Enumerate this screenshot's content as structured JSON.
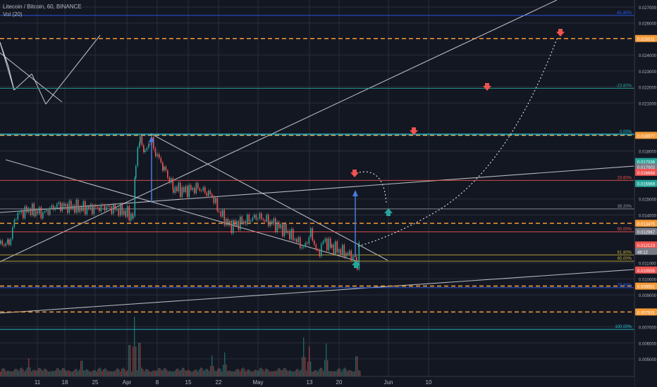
{
  "header": {
    "symbol": "Litecoin / Bitcoin, 60, BINANCE",
    "volume_indicator": "Vol (20)"
  },
  "colors": {
    "background": "#131722",
    "grid": "#2a2e39",
    "orange_level": "#f59a37",
    "fib_blue": "#2962ff",
    "fib_green": "#26a69a",
    "fib_red": "#ef5350",
    "trendline": "#d1d4dc",
    "candle_up": "#26a69a",
    "candle_down": "#ef5350",
    "arrow_blue": "#4a7bd8"
  },
  "chart_data": {
    "type": "candlestick",
    "y_axis": {
      "min": 0.0045,
      "max": 0.0272,
      "ticks": [
        "0.027000",
        "0.026000",
        "0.024000",
        "0.023000",
        "0.022000",
        "0.021000",
        "0.018000",
        "0.015000",
        "0.014000",
        "0.011000",
        "0.010000",
        "0.009000",
        "0.007000",
        "0.006000",
        "0.005000"
      ]
    },
    "x_axis": {
      "ticks": [
        "11",
        "18",
        "25",
        "Apr",
        "8",
        "15",
        "22",
        "May",
        "13",
        "20",
        "Jun",
        "10"
      ]
    },
    "fib_levels": [
      {
        "label": "-61.80%",
        "price": 0.02648,
        "color": "#2962ff"
      },
      {
        "label": "-23.60%",
        "price": 0.02192,
        "color": "#26a69a"
      },
      {
        "label": "0.00%",
        "price": 0.01904,
        "color": "#26c6da"
      },
      {
        "label": "23.60%",
        "price": 0.01616,
        "color": "#ef5350"
      },
      {
        "label": "38.20%",
        "price": 0.01438,
        "color": "#9598a1"
      },
      {
        "label": "50.00%",
        "price": 0.01294,
        "color": "#ef5350"
      },
      {
        "label": "61.80%",
        "price": 0.0115,
        "color": "#c9b037"
      },
      {
        "label": "65.00%",
        "price": 0.01111,
        "color": "#c9b037"
      },
      {
        "label": "78.60%",
        "price": 0.00945,
        "color": "#2962ff"
      },
      {
        "label": "100.00%",
        "price": 0.00684,
        "color": "#26c6da"
      }
    ],
    "price_levels": [
      {
        "label": "0.025031",
        "price": 0.025031,
        "color": "#f59a37"
      },
      {
        "label": "0.018977",
        "price": 0.018977,
        "color": "#f59a37"
      },
      {
        "label": "0.017336",
        "price": 0.017336,
        "color": "#26a69a"
      },
      {
        "label": "0.017002",
        "price": 0.017002,
        "color": "#787b86"
      },
      {
        "label": "0.016668",
        "price": 0.016668,
        "color": "#ef5350"
      },
      {
        "label": "0.015969",
        "price": 0.015969,
        "color": "#26a69a"
      },
      {
        "label": "0.013475",
        "price": 0.013475,
        "color": "#f59a37"
      },
      {
        "label": "0.012967",
        "price": 0.012967,
        "color": "#787b86"
      },
      {
        "label": "0.012123",
        "price": 0.012123,
        "color": "#ef5350"
      },
      {
        "label": "48:12",
        "price": 0.01172,
        "color": "#787b86"
      },
      {
        "label": "0.010555",
        "price": 0.010555,
        "color": "#ef5350"
      },
      {
        "label": "0.009551",
        "price": 0.009551,
        "color": "#f59a37"
      },
      {
        "label": "0.007931",
        "price": 0.007931,
        "color": "#f59a37"
      }
    ],
    "price_path": [
      {
        "x": 0,
        "y": 0.0122
      },
      {
        "x": 12,
        "y": 0.0122
      },
      {
        "x": 22,
        "y": 0.014
      },
      {
        "x": 40,
        "y": 0.0143
      },
      {
        "x": 60,
        "y": 0.0141
      },
      {
        "x": 80,
        "y": 0.0146
      },
      {
        "x": 100,
        "y": 0.0145
      },
      {
        "x": 125,
        "y": 0.0144
      },
      {
        "x": 150,
        "y": 0.0145
      },
      {
        "x": 175,
        "y": 0.0142
      },
      {
        "x": 188,
        "y": 0.0139
      },
      {
        "x": 192,
        "y": 0.0175
      },
      {
        "x": 198,
        "y": 0.0188
      },
      {
        "x": 205,
        "y": 0.0178
      },
      {
        "x": 212,
        "y": 0.0188
      },
      {
        "x": 220,
        "y": 0.0179
      },
      {
        "x": 232,
        "y": 0.0169
      },
      {
        "x": 245,
        "y": 0.0157
      },
      {
        "x": 260,
        "y": 0.0155
      },
      {
        "x": 280,
        "y": 0.0157
      },
      {
        "x": 300,
        "y": 0.0152
      },
      {
        "x": 310,
        "y": 0.0142
      },
      {
        "x": 325,
        "y": 0.0133
      },
      {
        "x": 345,
        "y": 0.0136
      },
      {
        "x": 365,
        "y": 0.0139
      },
      {
        "x": 385,
        "y": 0.0135
      },
      {
        "x": 405,
        "y": 0.013
      },
      {
        "x": 420,
        "y": 0.0124
      },
      {
        "x": 430,
        "y": 0.0119
      },
      {
        "x": 440,
        "y": 0.0129
      },
      {
        "x": 450,
        "y": 0.0115
      },
      {
        "x": 458,
        "y": 0.0124
      },
      {
        "x": 470,
        "y": 0.012
      },
      {
        "x": 485,
        "y": 0.0117
      },
      {
        "x": 500,
        "y": 0.0114
      },
      {
        "x": 506,
        "y": 0.011
      },
      {
        "x": 510,
        "y": 0.0128
      }
    ],
    "volume_bars": {
      "base_price": 0.0047,
      "spikes": [
        {
          "x": 190,
          "v": 1.0
        },
        {
          "x": 197,
          "v": 0.75
        },
        {
          "x": 183,
          "v": 0.7
        },
        {
          "x": 430,
          "v": 0.65
        },
        {
          "x": 438,
          "v": 0.5
        },
        {
          "x": 462,
          "v": 0.55
        },
        {
          "x": 300,
          "v": 0.35
        },
        {
          "x": 318,
          "v": 0.4
        },
        {
          "x": 505,
          "v": 0.45
        },
        {
          "x": 40,
          "v": 0.3
        },
        {
          "x": 115,
          "v": 0.35
        }
      ]
    }
  }
}
